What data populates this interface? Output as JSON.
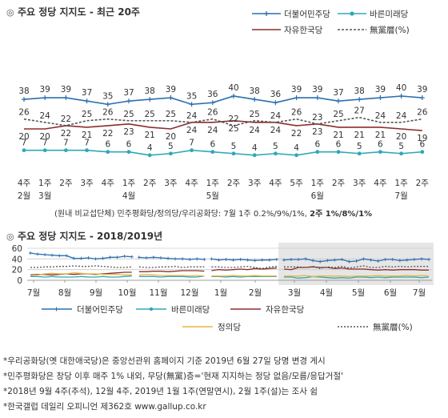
{
  "chart_data": [
    {
      "type": "line",
      "title": "주요 정당 지지도 - 최근 20주",
      "x": [
        "4주",
        "1주",
        "2주",
        "3주",
        "4주",
        "1주",
        "2주",
        "3주",
        "4주",
        "1주",
        "2주",
        "3주",
        "4주",
        "5주",
        "1주",
        "2주",
        "3주",
        "4주",
        "1주",
        "2주"
      ],
      "month_labels": [
        {
          "label": "2월",
          "at": 0
        },
        {
          "label": "3월",
          "at": 1
        },
        {
          "label": "4월",
          "at": 5
        },
        {
          "label": "5월",
          "at": 9
        },
        {
          "label": "6월",
          "at": 14
        },
        {
          "label": "7월",
          "at": 18
        }
      ],
      "ylim": [
        0,
        45
      ],
      "grid": false,
      "legend_position": "top-right",
      "series": [
        {
          "name": "더불어민주당",
          "color": "#2b6fb0",
          "marker": "plus",
          "values": [
            38,
            39,
            39,
            37,
            35,
            37,
            38,
            39,
            35,
            36,
            40,
            38,
            36,
            39,
            39,
            37,
            38,
            39,
            40,
            39
          ]
        },
        {
          "name": "바른미래당",
          "color": "#2fa8b8",
          "marker": "circle",
          "values": [
            7,
            7,
            7,
            7,
            6,
            6,
            4,
            5,
            7,
            6,
            5,
            4,
            5,
            4,
            6,
            6,
            5,
            6,
            5,
            6
          ]
        },
        {
          "name": "자유한국당",
          "color": "#8b2d2d",
          "marker": "none",
          "values": [
            20,
            20,
            22,
            21,
            22,
            23,
            21,
            20,
            24,
            24,
            25,
            24,
            24,
            22,
            23,
            21,
            21,
            21,
            20,
            19
          ]
        },
        {
          "name": "無黨層(%)",
          "color": "#555555",
          "marker": "none",
          "dashed": true,
          "values": [
            26,
            24,
            22,
            25,
            26,
            25,
            25,
            25,
            24,
            26,
            22,
            25,
            24,
            26,
            23,
            25,
            27,
            24,
            24,
            26
          ]
        }
      ],
      "note": "(원내 비교섭단체) 민주평화당/정의당/우리공화당: 7월 1주 0.2%/9%/1%, 2주 1%/8%/1%",
      "note_plain": "(원내 비교섭단체) 민주평화당/정의당/우리공화당: 7월 1주 0.2%/9%/1%, ",
      "note_bold": "2주 1%/8%/1%"
    },
    {
      "type": "line",
      "title": "주요 정당 지지도 - 2018/2019년",
      "yticks": [
        0,
        20,
        40,
        60
      ],
      "ylim": [
        0,
        60
      ],
      "x_month_labels": [
        "7월",
        "8월",
        "9월",
        "10월",
        "11월",
        "12월",
        "1월",
        "2월",
        "3월",
        "4월",
        "5월",
        "6월",
        "7월"
      ],
      "x_year_separators": [
        "2018",
        "2019"
      ],
      "grid": true,
      "highlight": "최근 20주",
      "series": [
        {
          "name": "더불어민주당",
          "color": "#2b6fb0",
          "values": [
            51,
            49,
            48,
            47,
            46,
            46,
            41,
            41,
            42,
            40,
            41,
            43,
            43,
            45,
            44,
            43,
            42,
            43,
            42,
            41,
            40,
            40,
            39,
            40,
            39,
            40,
            38,
            39,
            38,
            39,
            38,
            37,
            38,
            38,
            39,
            38,
            39,
            39,
            40,
            37,
            35,
            37,
            38,
            39,
            35,
            36,
            40,
            38,
            36,
            39,
            39,
            37,
            38,
            39,
            40,
            39
          ]
        },
        {
          "name": "바른미래당",
          "color": "#2fa8b8",
          "values": [
            7,
            7,
            6,
            7,
            6,
            6,
            6,
            7,
            6,
            6,
            7,
            6,
            6,
            7,
            8,
            7,
            7,
            7,
            6,
            7,
            7,
            7,
            6,
            6,
            8,
            7,
            7,
            6,
            7,
            6,
            7,
            7,
            7,
            7,
            7,
            6,
            6,
            4,
            5,
            7,
            6,
            5,
            4,
            5,
            4,
            6,
            6,
            5,
            6,
            5,
            6,
            6,
            6,
            6,
            5,
            6
          ]
        },
        {
          "name": "자유한국당",
          "color": "#8b2d2d",
          "values": [
            10,
            11,
            11,
            10,
            11,
            12,
            11,
            12,
            12,
            11,
            12,
            13,
            14,
            15,
            15,
            16,
            16,
            17,
            17,
            16,
            17,
            18,
            18,
            18,
            17,
            18,
            20,
            19,
            20,
            21,
            20,
            22,
            21,
            22,
            23,
            21,
            20,
            24,
            24,
            25,
            24,
            24,
            22,
            23,
            21,
            21,
            21,
            20,
            19,
            20,
            19,
            20,
            20,
            20,
            19,
            19
          ]
        },
        {
          "name": "정의당",
          "color": "#e8b740",
          "values": [
            9,
            10,
            12,
            13,
            12,
            12,
            14,
            13,
            12,
            12,
            11,
            11,
            11,
            10,
            10,
            10,
            11,
            10,
            9,
            9,
            9,
            9,
            8,
            9,
            8,
            8,
            8,
            8,
            9,
            8,
            8,
            9,
            8,
            8,
            8,
            8,
            8,
            8,
            9,
            7,
            8,
            8,
            8,
            8,
            7,
            8,
            8,
            8,
            9,
            8,
            8,
            8,
            9,
            8,
            9,
            8
          ]
        },
        {
          "name": "無黨層(%)",
          "color": "#555555",
          "dashed": true,
          "values": [
            24,
            24,
            25,
            25,
            26,
            26,
            27,
            26,
            26,
            27,
            26,
            25,
            24,
            24,
            25,
            25,
            24,
            24,
            25,
            25,
            26,
            24,
            25,
            25,
            25,
            25,
            25,
            24,
            24,
            25,
            26,
            24,
            22,
            25,
            26,
            25,
            25,
            25,
            24,
            26,
            22,
            25,
            24,
            26,
            23,
            25,
            27,
            24,
            24,
            26,
            25,
            26,
            25,
            26,
            26,
            26
          ]
        }
      ]
    }
  ],
  "footnotes": [
    "*우리공화당(옛 대한애국당)은 중앙선관위 홈페이지 기준 2019년 6월 27일 당명 변경 게시",
    "*민주평화당은 창당 이후 매주 1% 내외, 무당(無黨)층='현재 지지하는 정당 없음/모름/응답거절'",
    "*2018년 9월 4주(추석), 12월 4주, 2019년 1월 1주(연말연시), 2월 1주(설)는 조사 쉼",
    "*한국갤럽 데일리 오피니언 제362호 www.gallup.co.kr"
  ]
}
